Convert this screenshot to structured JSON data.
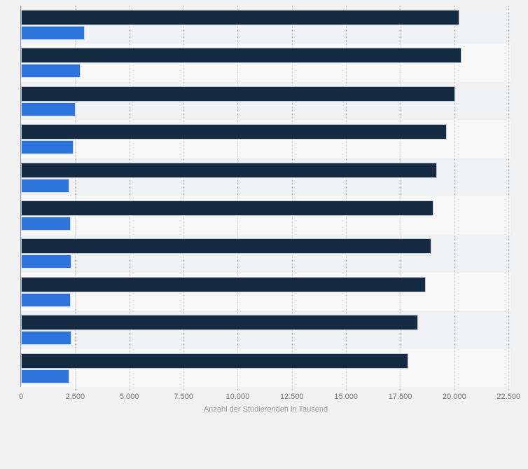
{
  "chart_data": {
    "type": "bar",
    "orientation": "horizontal",
    "title": "",
    "xlabel": "Anzahl der Studierenden in Tausend",
    "ylabel": "",
    "xlim": [
      0,
      22500
    ],
    "xticks": [
      0,
      2500,
      5000,
      7500,
      10000,
      12500,
      15000,
      17500,
      20000,
      22500
    ],
    "xtick_labels": [
      "0",
      "2.500",
      "5.000",
      "7.500",
      "10.000",
      "12.500",
      "15.000",
      "17.500",
      "20.000",
      "22.500"
    ],
    "grid": "dotted-vertical",
    "legend": "none",
    "categories": [
      "",
      "",
      "",
      "",
      "",
      "",
      "",
      "",
      "",
      ""
    ],
    "series": [
      {
        "name": "dark-navy-series",
        "color": "#132A42",
        "values": [
          20200,
          20300,
          20000,
          19600,
          19150,
          19000,
          18900,
          18650,
          18300,
          17850
        ]
      },
      {
        "name": "blue-series",
        "color": "#2C73DB",
        "values": [
          2900,
          2700,
          2500,
          2400,
          2200,
          2250,
          2300,
          2250,
          2300,
          2200
        ]
      }
    ]
  },
  "colors": {
    "page_background": "#F2F2F2",
    "band_even": "#F0F1F2",
    "band_odd": "#F8F8F9",
    "axis_line": "#8A8A8A",
    "gridline": "#C9C9C9",
    "tick_text": "#757575",
    "axis_title_text": "#9B9B9B",
    "bar_border": "rgba(255,255,255,0.75)"
  }
}
